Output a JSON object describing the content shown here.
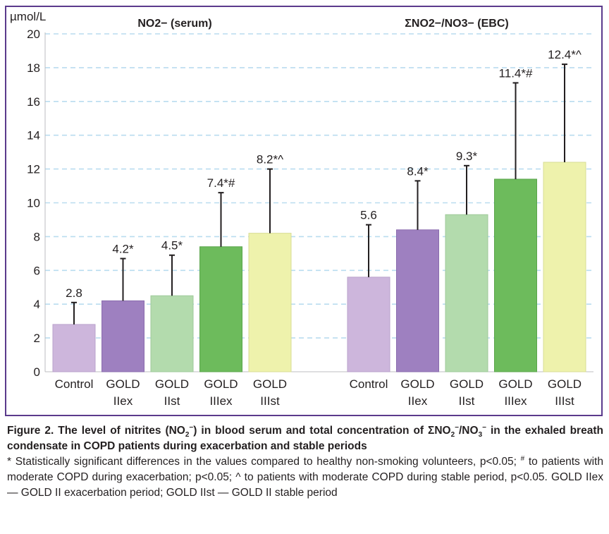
{
  "chart_data": [
    {
      "type": "bar",
      "title": "NO2− (serum)",
      "ylabel": "µmol/L",
      "ylim": [
        0,
        20
      ],
      "yticks": [
        0,
        2,
        4,
        6,
        8,
        10,
        12,
        14,
        16,
        18,
        20
      ],
      "grid": true,
      "categories": [
        "Control",
        "GOLD IIex",
        "GOLD IIst",
        "GOLD IIIex",
        "GOLD IIIst"
      ],
      "category_lines": [
        [
          "Control"
        ],
        [
          "GOLD",
          "IIex"
        ],
        [
          "GOLD",
          "IIst"
        ],
        [
          "GOLD",
          "IIIex"
        ],
        [
          "GOLD",
          "IIIst"
        ]
      ],
      "values": [
        2.8,
        4.2,
        4.5,
        7.4,
        8.2
      ],
      "error_upper": [
        4.1,
        6.7,
        6.9,
        10.6,
        12.0
      ],
      "data_labels": [
        "2.8",
        "4.2*",
        "4.5*",
        "7.4*#",
        "8.2*^"
      ]
    },
    {
      "type": "bar",
      "title": "ΣNO2−/NO3− (EBC)",
      "ylim": [
        0,
        20
      ],
      "grid": true,
      "categories": [
        "Control",
        "GOLD IIex",
        "GOLD IIst",
        "GOLD IIIex",
        "GOLD IIIst"
      ],
      "category_lines": [
        [
          "Control"
        ],
        [
          "GOLD",
          "IIex"
        ],
        [
          "GOLD",
          "IIst"
        ],
        [
          "GOLD",
          "IIIex"
        ],
        [
          "GOLD",
          "IIIst"
        ]
      ],
      "values": [
        5.6,
        8.4,
        9.3,
        11.4,
        12.4
      ],
      "error_upper": [
        8.7,
        11.3,
        12.2,
        17.1,
        18.2
      ],
      "data_labels": [
        "5.6",
        "8.4*",
        "9.3*",
        "11.4*#",
        "12.4*^"
      ]
    }
  ],
  "colors": {
    "frame": "#5b3a8c",
    "grid": "#b9dcef",
    "bars": [
      "#cdb6dc",
      "#9e80c0",
      "#b3dbad",
      "#6dbb5c",
      "#eef2ac"
    ],
    "bar_stroke": [
      "#b9a1cb",
      "#8a6cae",
      "#9fc99a",
      "#5aa54b",
      "#d8dd96"
    ]
  },
  "caption": {
    "figure_label": "Figure 2.",
    "bold_a": "The level of nitrites (NO",
    "bold_b": ") in blood serum and total concentration of ΣNO",
    "bold_c": "/NO",
    "bold_d": "in the exhaled breath condensate in COPD patients during exacerbation and stable periods",
    "sub2": "2",
    "sub3": "3",
    "supminus": "−",
    "note_a": "* Statistically significant differences in the values compared to healthy non-smoking volunteers, p<0.05;",
    "note_hash": "#",
    "note_b": "to patients with moderate COPD during exacerbation; p<0.05; ^ to patients with moderate COPD during stable period, p<0.05. GOLD IIex — GOLD II exacerbation period; GOLD IIst — GOLD II stable period"
  }
}
